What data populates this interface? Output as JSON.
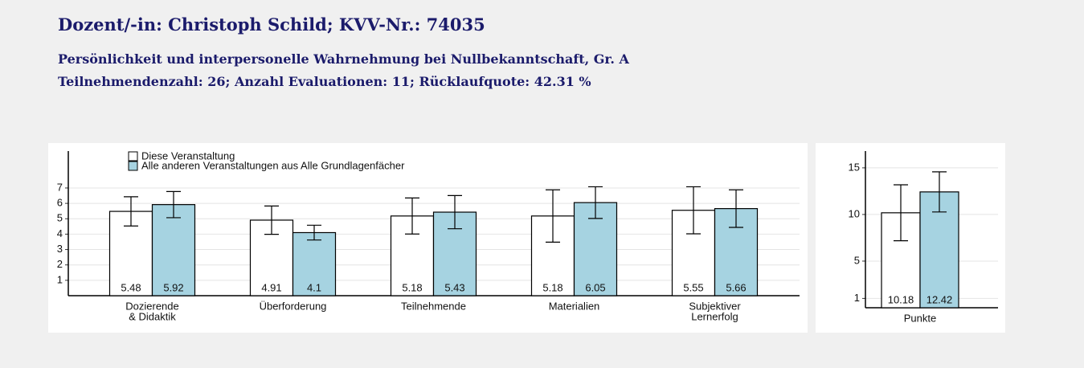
{
  "header": {
    "title": "Dozent/-in: Christoph Schild; KVV-Nr.: 74035",
    "course": "Persönlichkeit und interpersonelle Wahrnehmung bei Nullbekanntschaft, Gr. A",
    "stats": "Teilnehmendenzahl: 26; Anzahl Evaluationen: 11; Rücklaufquote: 42.31 %"
  },
  "chart_data": [
    {
      "type": "bar",
      "legend": "top-left",
      "grid": true,
      "categories": [
        [
          "Dozierende",
          "& Didaktik"
        ],
        [
          "Überforderung"
        ],
        [
          "Teilnehmende"
        ],
        [
          "Materialien"
        ],
        [
          "Subjektiver",
          "Lernerfolg"
        ]
      ],
      "series": [
        {
          "name": "Diese Veranstaltung",
          "color": "#ffffff",
          "values": [
            5.48,
            4.91,
            5.18,
            5.18,
            5.55
          ],
          "errors": [
            0.95,
            0.92,
            1.17,
            1.7,
            1.53
          ]
        },
        {
          "name": "Alle anderen Veranstaltungen aus Alle Grundlagenfächer",
          "color": "#a6d3e1",
          "values": [
            5.92,
            4.1,
            5.43,
            6.05,
            5.66
          ],
          "errors": [
            0.85,
            0.48,
            1.08,
            1.03,
            1.22
          ]
        }
      ],
      "ylim": [
        0,
        9.4
      ],
      "yticks": [
        1,
        2,
        3,
        4,
        5,
        6,
        7
      ]
    },
    {
      "type": "bar",
      "grid": true,
      "categories": [
        [
          "Punkte"
        ]
      ],
      "series": [
        {
          "color": "#ffffff",
          "values": [
            10.18
          ],
          "errors": [
            3.0
          ]
        },
        {
          "color": "#a6d3e1",
          "values": [
            12.42
          ],
          "errors": [
            2.15
          ]
        }
      ],
      "ylim": [
        0,
        16.8
      ],
      "yticks": [
        1,
        5,
        10,
        15
      ]
    }
  ]
}
